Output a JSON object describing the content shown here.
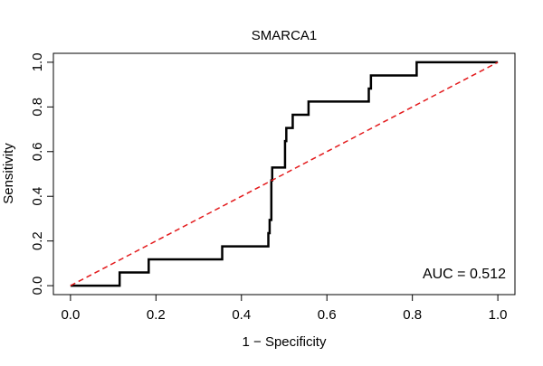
{
  "chart_data": {
    "type": "line",
    "title": "SMARCA1",
    "xlabel": "1 − Specificity",
    "ylabel": "Sensitivity",
    "xlim": [
      -0.04,
      1.04
    ],
    "ylim": [
      -0.04,
      1.04
    ],
    "x_ticks": [
      0.0,
      0.2,
      0.4,
      0.6,
      0.8,
      1.0
    ],
    "y_ticks": [
      0.0,
      0.2,
      0.4,
      0.6,
      0.8,
      1.0
    ],
    "x_tick_labels": [
      "0.0",
      "0.2",
      "0.4",
      "0.6",
      "0.8",
      "1.0"
    ],
    "y_tick_labels": [
      "0.0",
      "0.2",
      "0.4",
      "0.6",
      "0.8",
      "1.0"
    ],
    "grid": false,
    "annotation": "AUC = 0.512",
    "annotation_position": "bottom-right",
    "series": [
      {
        "color": "#000000",
        "style": "solid",
        "x": [
          0.0,
          0.115,
          0.115,
          0.183,
          0.183,
          0.355,
          0.355,
          0.463,
          0.463,
          0.466,
          0.466,
          0.47,
          0.47,
          0.472,
          0.472,
          0.502,
          0.502,
          0.505,
          0.505,
          0.51,
          0.51,
          0.52,
          0.52,
          0.535,
          0.535,
          0.557,
          0.557,
          0.698,
          0.698,
          0.703,
          0.703,
          0.81,
          0.81,
          1.0
        ],
        "y": [
          0.0,
          0.0,
          0.059,
          0.059,
          0.118,
          0.118,
          0.176,
          0.176,
          0.235,
          0.235,
          0.294,
          0.294,
          0.471,
          0.471,
          0.529,
          0.529,
          0.647,
          0.647,
          0.706,
          0.706,
          0.706,
          0.706,
          0.765,
          0.765,
          0.765,
          0.765,
          0.824,
          0.824,
          0.882,
          0.882,
          0.941,
          0.941,
          1.0,
          1.0
        ]
      },
      {
        "color": "#e31a1c",
        "style": "dashed",
        "x": [
          0.0,
          1.0
        ],
        "y": [
          0.0,
          1.0
        ]
      }
    ]
  }
}
